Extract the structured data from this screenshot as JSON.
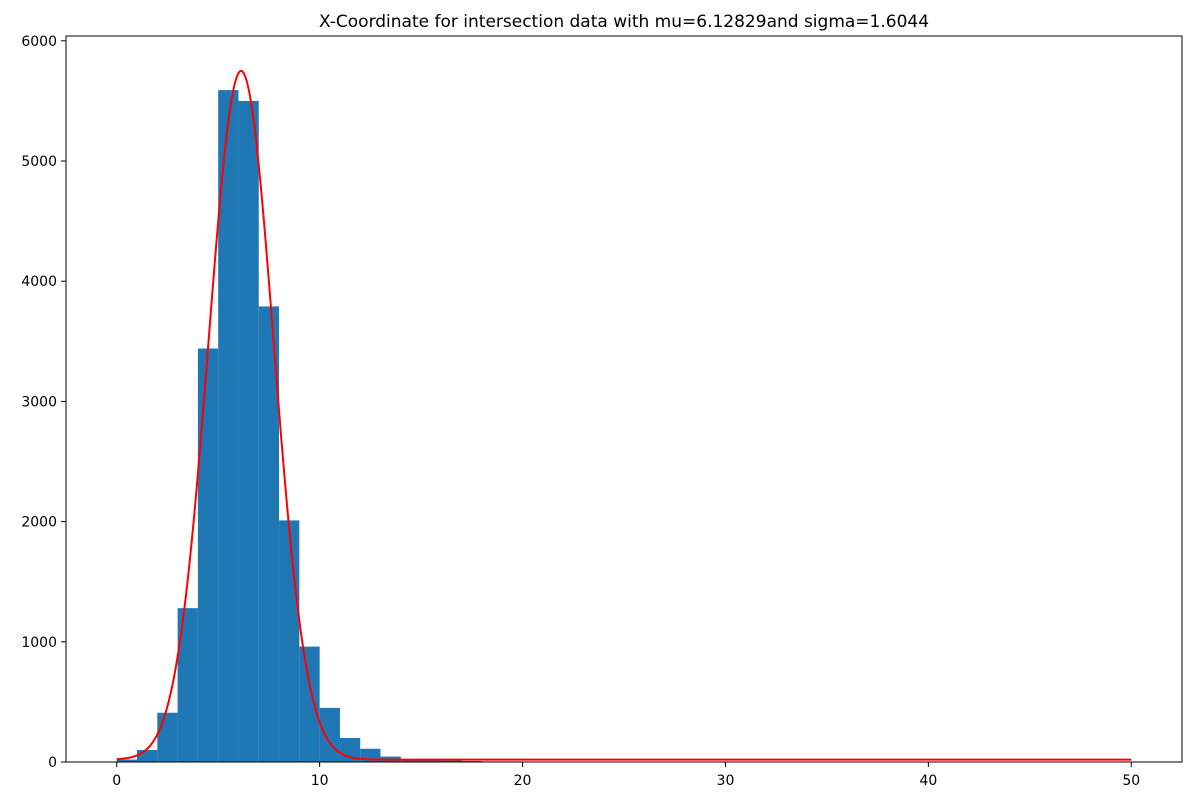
{
  "chart_data": {
    "type": "bar",
    "title": "X-Coordinate for intersection data with mu=6.12829and sigma=1.6044",
    "xlabel": "",
    "ylabel": "",
    "xlim": [
      -2.5,
      52.5
    ],
    "ylim": [
      0,
      6040
    ],
    "xticks": [
      0,
      10,
      20,
      30,
      40,
      50
    ],
    "yticks": [
      0,
      1000,
      2000,
      3000,
      4000,
      5000,
      6000
    ],
    "bin_width": 1,
    "histogram": {
      "color": "#1f77b4",
      "bin_starts": [
        0,
        1,
        2,
        3,
        4,
        5,
        6,
        7,
        8,
        9,
        10,
        11,
        12,
        13,
        14,
        15,
        16,
        17,
        18,
        19
      ],
      "values": [
        20,
        100,
        410,
        1280,
        3440,
        5590,
        5500,
        3790,
        2010,
        960,
        450,
        200,
        110,
        45,
        25,
        18,
        12,
        8,
        5,
        5
      ]
    },
    "fit_curve": {
      "type": "line",
      "color": "#ff0000",
      "distribution": "normal",
      "mu": 6.12829,
      "sigma": 1.6044,
      "peak": 5750,
      "baseline": 20,
      "x_range": [
        0,
        50
      ]
    },
    "grid": false,
    "legend": "none"
  }
}
